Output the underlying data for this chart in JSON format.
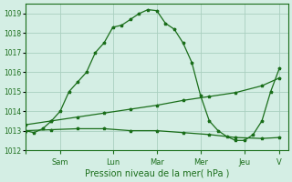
{
  "xlabel": "Pression niveau de la mer( hPa )",
  "bg_color": "#d4eee4",
  "line_color": "#1a6e1a",
  "grid_color": "#aacfbf",
  "ylim": [
    1012,
    1019.5
  ],
  "yticks": [
    1012,
    1013,
    1014,
    1015,
    1016,
    1017,
    1018,
    1019
  ],
  "day_labels": [
    "",
    "Sam",
    "Lun",
    "Mar",
    "Mer",
    "Jeu",
    "V"
  ],
  "day_positions": [
    0,
    4,
    10,
    15,
    20,
    25,
    29
  ],
  "xlim": [
    0,
    30
  ],
  "line1_x": [
    0,
    1,
    2,
    3,
    4,
    5,
    6,
    7,
    8,
    9,
    10,
    11,
    12,
    13,
    14,
    15,
    16,
    17,
    18,
    19,
    20,
    21,
    22,
    23,
    24,
    25,
    26,
    27,
    28,
    29
  ],
  "line1_y": [
    1013.0,
    1012.9,
    1013.1,
    1013.5,
    1014.0,
    1015.0,
    1015.5,
    1016.0,
    1017.0,
    1017.5,
    1018.3,
    1018.4,
    1018.7,
    1019.0,
    1019.2,
    1019.15,
    1018.5,
    1018.2,
    1017.5,
    1016.5,
    1014.8,
    1013.5,
    1013.0,
    1012.7,
    1012.5,
    1012.5,
    1012.8,
    1013.5,
    1015.0,
    1016.2
  ],
  "line2_x": [
    0,
    3,
    6,
    9,
    12,
    15,
    18,
    21,
    24,
    27,
    29
  ],
  "line2_y": [
    1013.3,
    1013.5,
    1013.7,
    1013.9,
    1014.1,
    1014.3,
    1014.55,
    1014.75,
    1014.95,
    1015.3,
    1015.7
  ],
  "line3_x": [
    0,
    3,
    6,
    9,
    12,
    15,
    18,
    21,
    24,
    27,
    29
  ],
  "line3_y": [
    1013.0,
    1013.05,
    1013.1,
    1013.1,
    1013.0,
    1013.0,
    1012.9,
    1012.8,
    1012.65,
    1012.6,
    1012.65
  ]
}
